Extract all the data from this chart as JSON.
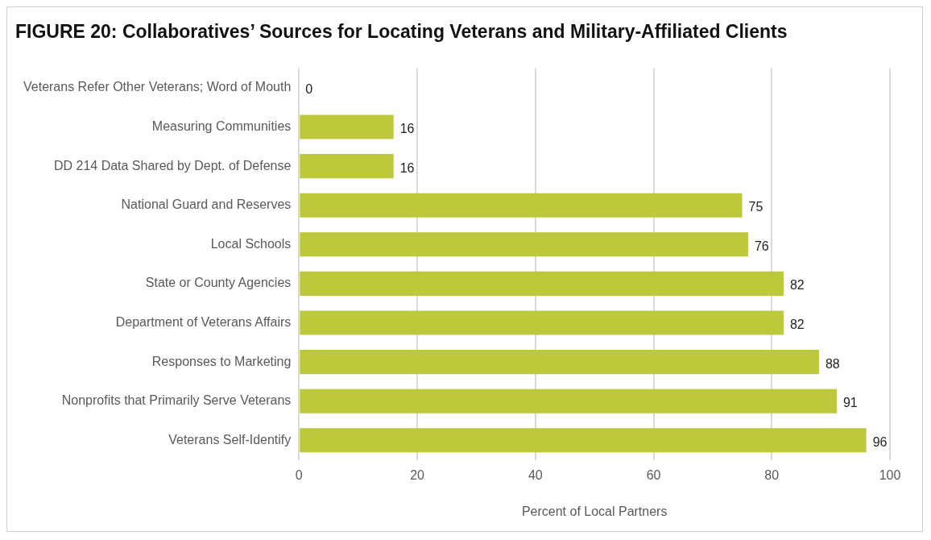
{
  "chart_data": {
    "type": "bar",
    "orientation": "horizontal",
    "title": "FIGURE 20: Collaboratives’ Sources for Locating Veterans and Military-Affiliated Clients",
    "xlabel": "Percent of Local Partners",
    "categories": [
      "Veterans Refer Other Veterans; Word of Mouth",
      "Measuring Communities",
      "DD 214 Data Shared by Dept. of Defense",
      "National Guard and Reserves",
      "Local Schools",
      "State or County Agencies",
      "Department of Veterans Affairs",
      "Responses to Marketing",
      "Nonprofits that Primarily Serve Veterans",
      "Veterans Self-Identify"
    ],
    "values": [
      0,
      16,
      16,
      75,
      76,
      82,
      82,
      88,
      91,
      96
    ],
    "color": "#bdc83a",
    "xlim": [
      0,
      100
    ],
    "xticks": [
      0,
      20,
      40,
      60,
      80,
      100
    ],
    "grid": "x",
    "data_labels": true,
    "legend": false
  }
}
